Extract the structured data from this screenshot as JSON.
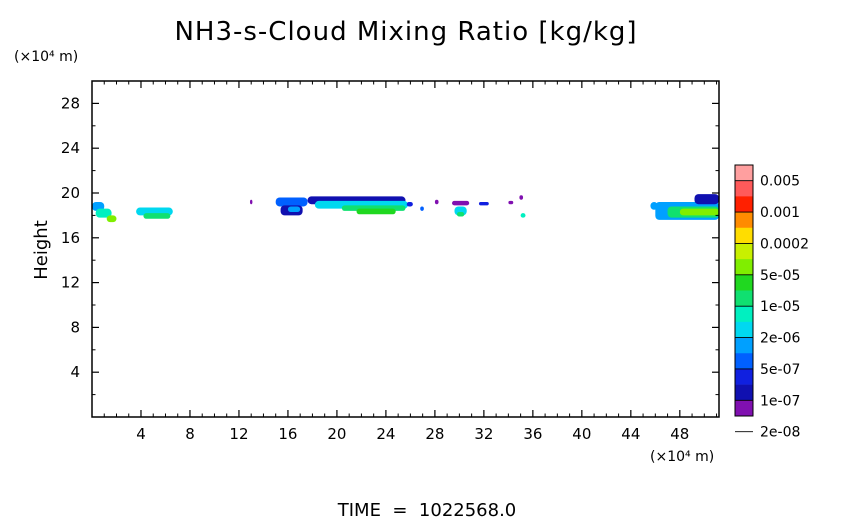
{
  "chart_data": {
    "type": "heatmap",
    "title": "NH3-s-Cloud Mixing Ratio [kg/kg]",
    "ylabel": "Height",
    "y_unit": "(×10⁴ m)",
    "x_unit": "(×10⁴ m)",
    "footer": "TIME  =  1022568.0",
    "xlim": [
      0,
      51.2
    ],
    "ylim": [
      0,
      30
    ],
    "x_ticks": [
      4,
      8,
      12,
      16,
      20,
      24,
      28,
      32,
      36,
      40,
      44,
      48
    ],
    "y_ticks": [
      4,
      8,
      12,
      16,
      20,
      24,
      28
    ],
    "legend": {
      "labels": [
        "0.005",
        "0.001",
        "0.0002",
        "5e-05",
        "1e-05",
        "2e-06",
        "5e-07",
        "1e-07",
        "2e-08"
      ],
      "colors": [
        "#ff9f9f",
        "#ff5a5a",
        "#ff2000",
        "#ff8c00",
        "#ffdd00",
        "#c8f000",
        "#80ee00",
        "#20d820",
        "#10e070",
        "#00f0c0",
        "#00d8f0",
        "#00a0ff",
        "#0060ff",
        "#1020e0",
        "#1010b0",
        "#8010b0"
      ]
    },
    "cloud_patches": [
      {
        "x0": 0.0,
        "x1": 1.0,
        "y0": 18.4,
        "y1": 19.2,
        "level": 11
      },
      {
        "x0": 0.3,
        "x1": 1.6,
        "y0": 17.8,
        "y1": 18.6,
        "level": 9
      },
      {
        "x0": 1.2,
        "x1": 2.0,
        "y0": 17.4,
        "y1": 18.0,
        "level": 6
      },
      {
        "x0": 3.6,
        "x1": 6.6,
        "y0": 18.0,
        "y1": 18.7,
        "level": 10
      },
      {
        "x0": 4.2,
        "x1": 6.4,
        "y0": 17.7,
        "y1": 18.2,
        "level": 8
      },
      {
        "x0": 12.9,
        "x1": 13.1,
        "y0": 19.0,
        "y1": 19.4,
        "level": 15
      },
      {
        "x0": 15.0,
        "x1": 17.6,
        "y0": 18.8,
        "y1": 19.6,
        "level": 12
      },
      {
        "x0": 15.4,
        "x1": 17.2,
        "y0": 18.0,
        "y1": 18.9,
        "level": 14
      },
      {
        "x0": 16.0,
        "x1": 17.0,
        "y0": 18.3,
        "y1": 18.8,
        "level": 11
      },
      {
        "x0": 17.6,
        "x1": 25.6,
        "y0": 19.0,
        "y1": 19.7,
        "level": 14
      },
      {
        "x0": 18.2,
        "x1": 25.8,
        "y0": 18.6,
        "y1": 19.3,
        "level": 10
      },
      {
        "x0": 20.4,
        "x1": 25.6,
        "y0": 18.4,
        "y1": 18.9,
        "level": 8
      },
      {
        "x0": 21.6,
        "x1": 24.8,
        "y0": 18.1,
        "y1": 18.6,
        "level": 7
      },
      {
        "x0": 25.7,
        "x1": 26.2,
        "y0": 18.8,
        "y1": 19.2,
        "level": 13
      },
      {
        "x0": 26.8,
        "x1": 27.1,
        "y0": 18.4,
        "y1": 18.8,
        "level": 12
      },
      {
        "x0": 28.0,
        "x1": 28.3,
        "y0": 19.0,
        "y1": 19.4,
        "level": 15
      },
      {
        "x0": 29.4,
        "x1": 30.8,
        "y0": 18.9,
        "y1": 19.3,
        "level": 15
      },
      {
        "x0": 29.6,
        "x1": 30.6,
        "y0": 18.0,
        "y1": 18.8,
        "level": 10
      },
      {
        "x0": 29.8,
        "x1": 30.4,
        "y0": 17.9,
        "y1": 18.3,
        "level": 8
      },
      {
        "x0": 31.6,
        "x1": 32.4,
        "y0": 18.9,
        "y1": 19.2,
        "level": 13
      },
      {
        "x0": 34.0,
        "x1": 34.4,
        "y0": 19.0,
        "y1": 19.3,
        "level": 15
      },
      {
        "x0": 34.9,
        "x1": 35.2,
        "y0": 19.4,
        "y1": 19.8,
        "level": 15
      },
      {
        "x0": 35.0,
        "x1": 35.4,
        "y0": 17.8,
        "y1": 18.2,
        "level": 9
      },
      {
        "x0": 45.6,
        "x1": 46.2,
        "y0": 18.5,
        "y1": 19.2,
        "level": 11
      },
      {
        "x0": 46.0,
        "x1": 51.2,
        "y0": 17.6,
        "y1": 19.2,
        "level": 11
      },
      {
        "x0": 47.0,
        "x1": 51.2,
        "y0": 17.8,
        "y1": 18.8,
        "level": 8
      },
      {
        "x0": 48.0,
        "x1": 51.2,
        "y0": 18.0,
        "y1": 18.6,
        "level": 6
      },
      {
        "x0": 49.2,
        "x1": 51.2,
        "y0": 19.0,
        "y1": 19.9,
        "level": 14
      }
    ]
  }
}
